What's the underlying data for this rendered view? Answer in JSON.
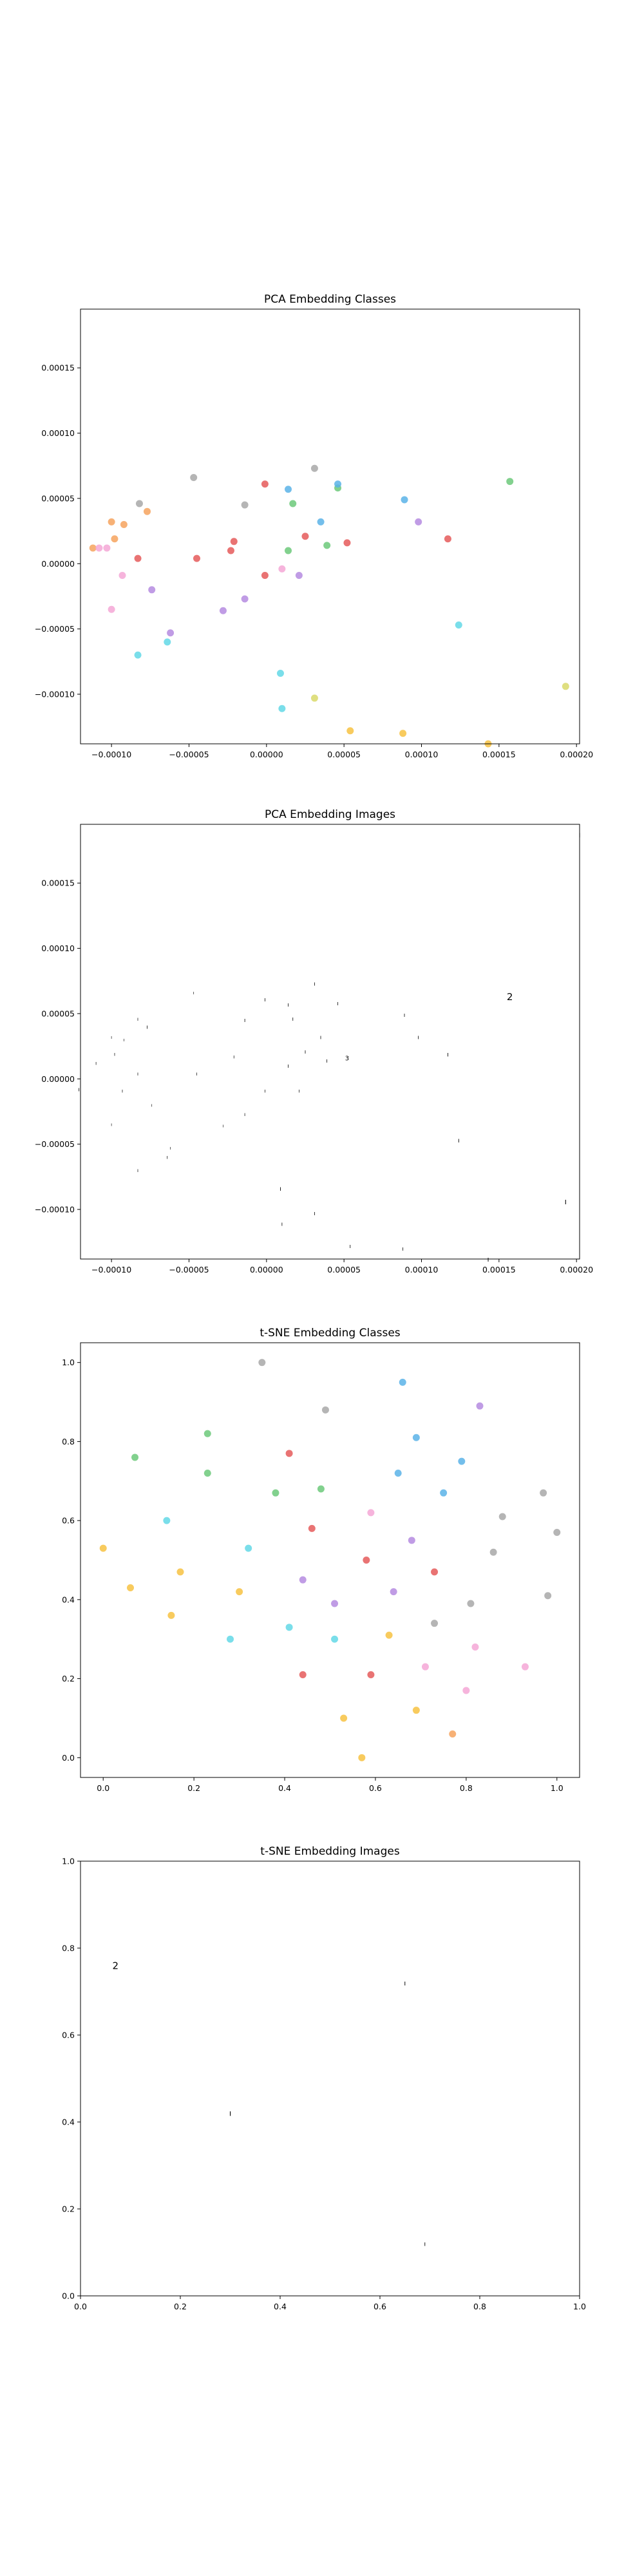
{
  "colors": {
    "class0": "#f7c242",
    "class1": "#f6a35e",
    "class2": "#6cc97a",
    "class3": "#e55b5b",
    "class4": "#5bb3e8",
    "class5": "#b58be0",
    "class6": "#a8a8a8",
    "class7": "#f5a7d6",
    "class8": "#d9d96a",
    "class9": "#63d8e6"
  },
  "chart_data": [
    {
      "type": "scatter",
      "title": "PCA Embedding Classes",
      "xlim": [
        -0.00012,
        0.000202
      ],
      "ylim": [
        -0.000138,
        0.000195
      ],
      "xticks": [
        -0.0001,
        -5e-05,
        0.0,
        5e-05,
        0.0001,
        0.00015,
        0.0002
      ],
      "xtick_labels": [
        "−0.00010",
        "−0.00005",
        "0.00000",
        "0.00005",
        "0.00010",
        "0.00015",
        "0.00020"
      ],
      "yticks": [
        -0.0001,
        -5e-05,
        0.0,
        5e-05,
        0.0001,
        0.00015
      ],
      "ytick_labels": [
        "−0.00010",
        "−0.00005",
        "0.00000",
        "0.00005",
        "0.00010",
        "0.00015"
      ],
      "points": [
        {
          "x": -0.000112,
          "y": 1.2e-05,
          "c": 1
        },
        {
          "x": -0.000108,
          "y": 1.2e-05,
          "c": 7
        },
        {
          "x": -0.000103,
          "y": 1.2e-05,
          "c": 7
        },
        {
          "x": -0.0001,
          "y": 3.2e-05,
          "c": 1
        },
        {
          "x": -9.8e-05,
          "y": 1.9e-05,
          "c": 1
        },
        {
          "x": -0.0001,
          "y": -3.5e-05,
          "c": 7
        },
        {
          "x": -9.2e-05,
          "y": 3e-05,
          "c": 1
        },
        {
          "x": -9.3e-05,
          "y": -9e-06,
          "c": 7
        },
        {
          "x": -8.2e-05,
          "y": 4.6e-05,
          "c": 6
        },
        {
          "x": -8.3e-05,
          "y": 4e-06,
          "c": 3
        },
        {
          "x": -8.3e-05,
          "y": -7e-05,
          "c": 9
        },
        {
          "x": -7.7e-05,
          "y": 4e-05,
          "c": 1
        },
        {
          "x": -7.4e-05,
          "y": -2e-05,
          "c": 5
        },
        {
          "x": -6.2e-05,
          "y": -5.3e-05,
          "c": 5
        },
        {
          "x": -6.4e-05,
          "y": -6e-05,
          "c": 9
        },
        {
          "x": -4.7e-05,
          "y": 6.6e-05,
          "c": 6
        },
        {
          "x": -4.5e-05,
          "y": 4e-06,
          "c": 3
        },
        {
          "x": -2.8e-05,
          "y": -3.6e-05,
          "c": 5
        },
        {
          "x": -2.3e-05,
          "y": 1e-05,
          "c": 3
        },
        {
          "x": -2.1e-05,
          "y": 1.7e-05,
          "c": 3
        },
        {
          "x": -1.4e-05,
          "y": 4.5e-05,
          "c": 6
        },
        {
          "x": -1.4e-05,
          "y": -2.7e-05,
          "c": 5
        },
        {
          "x": -1e-06,
          "y": 6.1e-05,
          "c": 3
        },
        {
          "x": -1e-06,
          "y": -9e-06,
          "c": 3
        },
        {
          "x": 9e-06,
          "y": -8.4e-05,
          "c": 9
        },
        {
          "x": 1e-05,
          "y": -0.000111,
          "c": 9
        },
        {
          "x": 1e-05,
          "y": -4e-06,
          "c": 7
        },
        {
          "x": 1.4e-05,
          "y": 5.7e-05,
          "c": 4
        },
        {
          "x": 1.4e-05,
          "y": 1e-05,
          "c": 2
        },
        {
          "x": 1.7e-05,
          "y": 4.6e-05,
          "c": 2
        },
        {
          "x": 2.1e-05,
          "y": -9e-06,
          "c": 5
        },
        {
          "x": 2.5e-05,
          "y": 2.1e-05,
          "c": 3
        },
        {
          "x": 3.1e-05,
          "y": 7.3e-05,
          "c": 6
        },
        {
          "x": 3.1e-05,
          "y": -0.000103,
          "c": 8
        },
        {
          "x": 3.5e-05,
          "y": 3.2e-05,
          "c": 4
        },
        {
          "x": 3.9e-05,
          "y": 1.4e-05,
          "c": 2
        },
        {
          "x": 4.6e-05,
          "y": 5.8e-05,
          "c": 2
        },
        {
          "x": 4.6e-05,
          "y": 6.1e-05,
          "c": 4
        },
        {
          "x": 5.2e-05,
          "y": 1.6e-05,
          "c": 3
        },
        {
          "x": 5.4e-05,
          "y": -0.000128,
          "c": 0
        },
        {
          "x": 8.8e-05,
          "y": -0.00013,
          "c": 0
        },
        {
          "x": 8.9e-05,
          "y": 4.9e-05,
          "c": 4
        },
        {
          "x": 9.8e-05,
          "y": 3.2e-05,
          "c": 5
        },
        {
          "x": 0.000117,
          "y": 1.9e-05,
          "c": 3
        },
        {
          "x": 0.000124,
          "y": -4.7e-05,
          "c": 9
        },
        {
          "x": 0.000143,
          "y": -0.000138,
          "c": 0
        },
        {
          "x": 0.000157,
          "y": 6.3e-05,
          "c": 2
        },
        {
          "x": 0.000193,
          "y": -9.4e-05,
          "c": 8
        }
      ]
    },
    {
      "type": "scatter",
      "title": "PCA Embedding Images",
      "xlim": [
        -0.00012,
        0.000202
      ],
      "ylim": [
        -0.000138,
        0.000195
      ],
      "xticks": [
        -0.0001,
        -5e-05,
        0.0,
        5e-05,
        0.0001,
        0.00015,
        0.0002
      ],
      "xtick_labels": [
        "−0.00010",
        "−0.00005",
        "0.00000",
        "0.00005",
        "0.00010",
        "0.00015",
        "0.00020"
      ],
      "yticks": [
        -0.0001,
        -5e-05,
        0.0,
        5e-05,
        0.0001,
        0.00015
      ],
      "ytick_labels": [
        "−0.00010",
        "−0.00005",
        "0.00000",
        "0.00005",
        "0.00010",
        "0.00015"
      ],
      "image_points": [
        {
          "x": -0.000121,
          "y": -8e-06,
          "g": "ı",
          "s": 9
        },
        {
          "x": -0.00011,
          "y": 1.2e-05,
          "g": "ı",
          "s": 8
        },
        {
          "x": -0.0001,
          "y": 3.2e-05,
          "g": "ı",
          "s": 7
        },
        {
          "x": -9.8e-05,
          "y": 1.9e-05,
          "g": "ı",
          "s": 8
        },
        {
          "x": -0.0001,
          "y": -3.5e-05,
          "g": "ı",
          "s": 7
        },
        {
          "x": -9.2e-05,
          "y": 3e-05,
          "g": "ı",
          "s": 7
        },
        {
          "x": -9.3e-05,
          "y": -9e-06,
          "g": "ı",
          "s": 8
        },
        {
          "x": -8.3e-05,
          "y": 4.6e-05,
          "g": "ı",
          "s": 8
        },
        {
          "x": -8.3e-05,
          "y": 4e-06,
          "g": "ı",
          "s": 8
        },
        {
          "x": -8.3e-05,
          "y": -7e-05,
          "g": "ı",
          "s": 8
        },
        {
          "x": -7.7e-05,
          "y": 4e-05,
          "g": "ı",
          "s": 9
        },
        {
          "x": -7.4e-05,
          "y": -2e-05,
          "g": "ı",
          "s": 7
        },
        {
          "x": -6.2e-05,
          "y": -5.3e-05,
          "g": "ı",
          "s": 7
        },
        {
          "x": -6.4e-05,
          "y": -6e-05,
          "g": "ı",
          "s": 8
        },
        {
          "x": -4.7e-05,
          "y": 6.6e-05,
          "g": "ı",
          "s": 7
        },
        {
          "x": -4.5e-05,
          "y": 4e-06,
          "g": "ı",
          "s": 8
        },
        {
          "x": -2.8e-05,
          "y": -3.6e-05,
          "g": "ı",
          "s": 7
        },
        {
          "x": -2.1e-05,
          "y": 1.7e-05,
          "g": "ı",
          "s": 8
        },
        {
          "x": -1.4e-05,
          "y": 4.5e-05,
          "g": "ı",
          "s": 9
        },
        {
          "x": -1.4e-05,
          "y": -2.7e-05,
          "g": "ı",
          "s": 8
        },
        {
          "x": -1e-06,
          "y": 6.1e-05,
          "g": "ı",
          "s": 9
        },
        {
          "x": -1e-06,
          "y": -9e-06,
          "g": "ı",
          "s": 8
        },
        {
          "x": 9e-06,
          "y": -8.4e-05,
          "g": "ı",
          "s": 10
        },
        {
          "x": 1e-05,
          "y": -0.000111,
          "g": "ı",
          "s": 9
        },
        {
          "x": 1.4e-05,
          "y": 5.7e-05,
          "g": "ı",
          "s": 9
        },
        {
          "x": 1.4e-05,
          "y": 1e-05,
          "g": "ı",
          "s": 9
        },
        {
          "x": 1.7e-05,
          "y": 4.6e-05,
          "g": "ı",
          "s": 9
        },
        {
          "x": 2.1e-05,
          "y": -9e-06,
          "g": "ı",
          "s": 8
        },
        {
          "x": 2.5e-05,
          "y": 2.1e-05,
          "g": "ı",
          "s": 9
        },
        {
          "x": 3.1e-05,
          "y": 7.3e-05,
          "g": "ı",
          "s": 9
        },
        {
          "x": 3.1e-05,
          "y": -0.000103,
          "g": "ı",
          "s": 9
        },
        {
          "x": 3.5e-05,
          "y": 3.2e-05,
          "g": "ı",
          "s": 9
        },
        {
          "x": 3.9e-05,
          "y": 1.4e-05,
          "g": "ı",
          "s": 9
        },
        {
          "x": 4.6e-05,
          "y": 5.8e-05,
          "g": "ı",
          "s": 9
        },
        {
          "x": 5.2e-05,
          "y": 1.6e-05,
          "g": "3",
          "s": 10
        },
        {
          "x": 5.4e-05,
          "y": -0.000128,
          "g": "ı",
          "s": 9
        },
        {
          "x": 8.8e-05,
          "y": -0.00013,
          "g": "ı",
          "s": 9
        },
        {
          "x": 8.9e-05,
          "y": 4.9e-05,
          "g": "ı",
          "s": 9
        },
        {
          "x": 9.8e-05,
          "y": 3.2e-05,
          "g": "ı",
          "s": 9
        },
        {
          "x": 0.000117,
          "y": 1.9e-05,
          "g": "ı",
          "s": 10
        },
        {
          "x": 0.000124,
          "y": -4.7e-05,
          "g": "ı",
          "s": 10
        },
        {
          "x": 0.000143,
          "y": -0.000138,
          "g": "ı",
          "s": 11
        },
        {
          "x": 0.000157,
          "y": 6.3e-05,
          "g": "2",
          "s": 15
        },
        {
          "x": 0.000193,
          "y": -9.4e-05,
          "g": "ı",
          "s": 12
        },
        {
          "x": 0.000202,
          "y": 0.000187,
          "g": "ı",
          "s": 12
        }
      ]
    },
    {
      "type": "scatter",
      "title": "t-SNE Embedding Classes",
      "xlim": [
        -0.05,
        1.05
      ],
      "ylim": [
        -0.05,
        1.05
      ],
      "xticks": [
        0.0,
        0.2,
        0.4,
        0.6,
        0.8,
        1.0
      ],
      "xtick_labels": [
        "0.0",
        "0.2",
        "0.4",
        "0.6",
        "0.8",
        "1.0"
      ],
      "yticks": [
        0.0,
        0.2,
        0.4,
        0.6,
        0.8,
        1.0
      ],
      "ytick_labels": [
        "0.0",
        "0.2",
        "0.4",
        "0.6",
        "0.8",
        "1.0"
      ],
      "points": [
        {
          "x": 0.0,
          "y": 0.53,
          "c": 0
        },
        {
          "x": 0.06,
          "y": 0.43,
          "c": 0
        },
        {
          "x": 0.07,
          "y": 0.76,
          "c": 2
        },
        {
          "x": 0.14,
          "y": 0.6,
          "c": 9
        },
        {
          "x": 0.15,
          "y": 0.36,
          "c": 0
        },
        {
          "x": 0.17,
          "y": 0.47,
          "c": 0
        },
        {
          "x": 0.23,
          "y": 0.82,
          "c": 2
        },
        {
          "x": 0.23,
          "y": 0.72,
          "c": 2
        },
        {
          "x": 0.28,
          "y": 0.3,
          "c": 9
        },
        {
          "x": 0.3,
          "y": 0.42,
          "c": 0
        },
        {
          "x": 0.32,
          "y": 0.53,
          "c": 9
        },
        {
          "x": 0.35,
          "y": 1.0,
          "c": 6
        },
        {
          "x": 0.38,
          "y": 0.67,
          "c": 2
        },
        {
          "x": 0.41,
          "y": 0.33,
          "c": 9
        },
        {
          "x": 0.41,
          "y": 0.77,
          "c": 3
        },
        {
          "x": 0.44,
          "y": 0.21,
          "c": 3
        },
        {
          "x": 0.44,
          "y": 0.45,
          "c": 5
        },
        {
          "x": 0.46,
          "y": 0.58,
          "c": 3
        },
        {
          "x": 0.48,
          "y": 0.68,
          "c": 2
        },
        {
          "x": 0.49,
          "y": 0.88,
          "c": 6
        },
        {
          "x": 0.51,
          "y": 0.39,
          "c": 5
        },
        {
          "x": 0.51,
          "y": 0.3,
          "c": 9
        },
        {
          "x": 0.53,
          "y": 0.1,
          "c": 0
        },
        {
          "x": 0.57,
          "y": 0.0,
          "c": 0
        },
        {
          "x": 0.58,
          "y": 0.5,
          "c": 3
        },
        {
          "x": 0.59,
          "y": 0.62,
          "c": 7
        },
        {
          "x": 0.59,
          "y": 0.21,
          "c": 3
        },
        {
          "x": 0.63,
          "y": 0.31,
          "c": 0
        },
        {
          "x": 0.64,
          "y": 0.42,
          "c": 5
        },
        {
          "x": 0.65,
          "y": 0.72,
          "c": 4
        },
        {
          "x": 0.66,
          "y": 0.95,
          "c": 4
        },
        {
          "x": 0.68,
          "y": 0.55,
          "c": 5
        },
        {
          "x": 0.69,
          "y": 0.81,
          "c": 4
        },
        {
          "x": 0.69,
          "y": 0.12,
          "c": 0
        },
        {
          "x": 0.71,
          "y": 0.23,
          "c": 7
        },
        {
          "x": 0.73,
          "y": 0.47,
          "c": 3
        },
        {
          "x": 0.73,
          "y": 0.34,
          "c": 6
        },
        {
          "x": 0.75,
          "y": 0.67,
          "c": 4
        },
        {
          "x": 0.77,
          "y": 0.06,
          "c": 1
        },
        {
          "x": 0.79,
          "y": 0.75,
          "c": 4
        },
        {
          "x": 0.8,
          "y": 0.17,
          "c": 7
        },
        {
          "x": 0.81,
          "y": 0.39,
          "c": 6
        },
        {
          "x": 0.82,
          "y": 0.28,
          "c": 7
        },
        {
          "x": 0.83,
          "y": 0.89,
          "c": 5
        },
        {
          "x": 0.86,
          "y": 0.52,
          "c": 6
        },
        {
          "x": 0.88,
          "y": 0.61,
          "c": 6
        },
        {
          "x": 0.93,
          "y": 0.23,
          "c": 7
        },
        {
          "x": 0.97,
          "y": 0.67,
          "c": 6
        },
        {
          "x": 0.98,
          "y": 0.41,
          "c": 6
        },
        {
          "x": 1.0,
          "y": 0.57,
          "c": 6
        }
      ]
    },
    {
      "type": "scatter",
      "title": "t-SNE Embedding Images",
      "xlim": [
        0.0,
        1.0
      ],
      "ylim": [
        0.0,
        1.0
      ],
      "xticks": [
        0.0,
        0.2,
        0.4,
        0.6,
        0.8,
        1.0
      ],
      "xtick_labels": [
        "0.0",
        "0.2",
        "0.4",
        "0.6",
        "0.8",
        "1.0"
      ],
      "yticks": [
        0.0,
        0.2,
        0.4,
        0.6,
        0.8,
        1.0
      ],
      "ytick_labels": [
        "0.0",
        "0.2",
        "0.4",
        "0.6",
        "0.8",
        "1.0"
      ],
      "image_points": [
        {
          "x": 0.07,
          "y": 0.76,
          "g": "2",
          "s": 15
        },
        {
          "x": 0.3,
          "y": 0.42,
          "g": "ı",
          "s": 12
        },
        {
          "x": 0.65,
          "y": 0.72,
          "g": "ı",
          "s": 11
        },
        {
          "x": 0.69,
          "y": 0.12,
          "g": "ı",
          "s": 10
        },
        {
          "x": 1.0,
          "y": 0.57,
          "g": "ı",
          "s": 10
        }
      ]
    }
  ]
}
